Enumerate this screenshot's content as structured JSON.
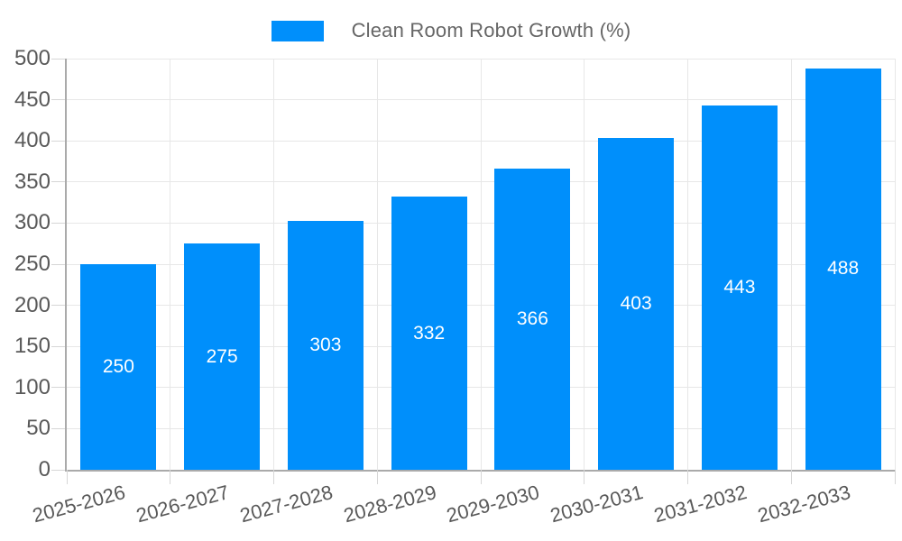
{
  "legend": {
    "label": "Clean Room Robot Growth (%)",
    "swatch_color": "#008ffb"
  },
  "chart_data": {
    "type": "bar",
    "title": "Clean Room Robot Growth (%)",
    "categories": [
      "2025-2026",
      "2026-2027",
      "2027-2028",
      "2028-2029",
      "2029-2030",
      "2030-2031",
      "2031-2032",
      "2032-2033"
    ],
    "values": [
      250,
      275,
      303,
      332,
      366,
      403,
      443,
      488
    ],
    "xlabel": "",
    "ylabel": "",
    "ylim": [
      0,
      500
    ],
    "yticks": [
      0,
      50,
      100,
      150,
      200,
      250,
      300,
      350,
      400,
      450,
      500
    ],
    "grid": true,
    "legend_position": "top-center",
    "bar_color": "#008ffb",
    "value_label_color": "#ffffff"
  },
  "colors": {
    "bar": "#008ffb",
    "grid_line": "#e7e7e7",
    "axis_line": "#aaaaaa",
    "tick_mark": "#d6d6d6",
    "axis_text": "#595959",
    "legend_text": "#666666",
    "background": "#ffffff"
  }
}
